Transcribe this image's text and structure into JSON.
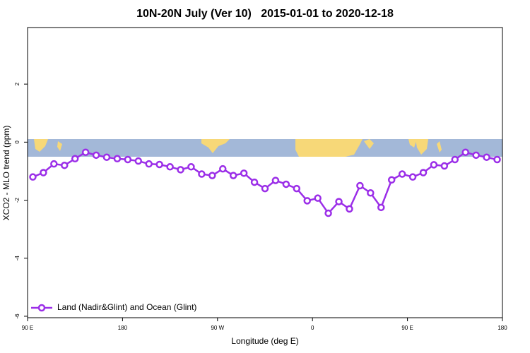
{
  "chart_data": {
    "type": "line",
    "title": "10N-20N July (Ver 10)   2015-01-01 to 2020-12-18",
    "xlabel": "Longitude (deg E)",
    "ylabel": "XCO2 - MLO trend (ppm)",
    "x": [
      95,
      105,
      115,
      125,
      135,
      145,
      155,
      165,
      175,
      185,
      195,
      205,
      215,
      225,
      235,
      245,
      255,
      265,
      275,
      285,
      295,
      305,
      315,
      325,
      335,
      345,
      355,
      365,
      375,
      385,
      395,
      405,
      415,
      425,
      435,
      445,
      455,
      465,
      475,
      485,
      495,
      505,
      515,
      525,
      535
    ],
    "series": [
      {
        "name": "Land (Nadir&Glint) and Ocean (Glint)",
        "color": "#9b2ee8",
        "values": [
          -1.2,
          -1.05,
          -0.75,
          -0.8,
          -0.57,
          -0.35,
          -0.45,
          -0.52,
          -0.57,
          -0.6,
          -0.65,
          -0.75,
          -0.77,
          -0.85,
          -0.95,
          -0.85,
          -1.1,
          -1.15,
          -0.92,
          -1.15,
          -1.07,
          -1.38,
          -1.6,
          -1.32,
          -1.45,
          -1.6,
          -2.02,
          -1.93,
          -2.45,
          -2.05,
          -2.3,
          -1.5,
          -1.75,
          -2.25,
          -1.3,
          -1.1,
          -1.2,
          -1.05,
          -0.78,
          -0.82,
          -0.6,
          -0.35,
          -0.45,
          -0.52,
          -0.6
        ]
      }
    ],
    "xlim": [
      90,
      540
    ],
    "xticks": [
      {
        "value": 90,
        "label": "90 E"
      },
      180,
      {
        "value": 270,
        "label": "90 W"
      },
      {
        "value": 360,
        "label": "0"
      },
      {
        "value": 450,
        "label": "90 E"
      },
      {
        "value": 540,
        "label": "180"
      }
    ],
    "ylim": [
      -6.05,
      3.95
    ],
    "yticks": [
      -6,
      -4,
      -2,
      0,
      2
    ],
    "legend": "bottomleft"
  }
}
